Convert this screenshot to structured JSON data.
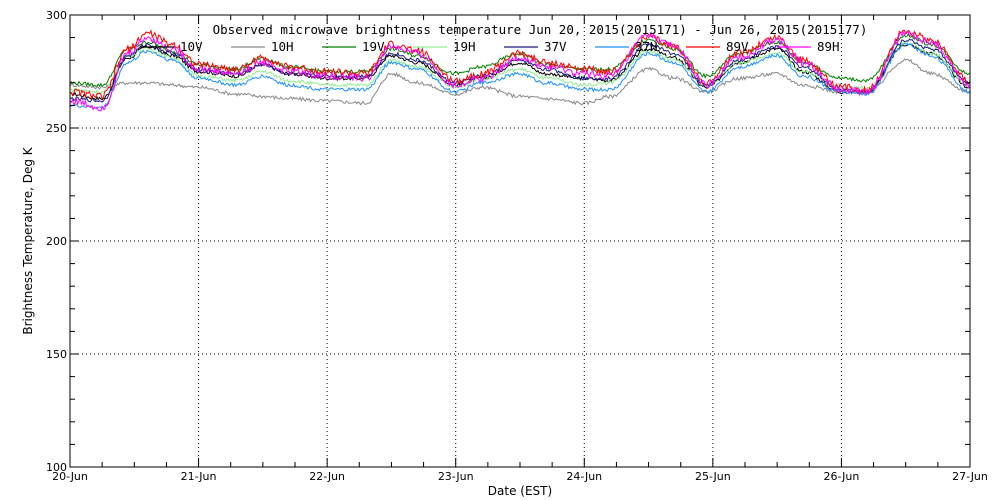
{
  "chart_data": {
    "type": "line",
    "title": "Observed microwave brightness temperature Jun 20, 2015(2015171) - Jun 26, 2015(2015177)",
    "xlabel": "Date (EST)",
    "ylabel": "Brightness Temperature, Deg K",
    "xlim": [
      0,
      7
    ],
    "ylim": [
      100,
      300
    ],
    "x_ticks": [
      0,
      1,
      2,
      3,
      4,
      5,
      6,
      7
    ],
    "x_tick_labels": [
      "20-Jun",
      "21-Jun",
      "22-Jun",
      "23-Jun",
      "24-Jun",
      "25-Jun",
      "26-Jun",
      "27-Jun"
    ],
    "y_ticks": [
      100,
      150,
      200,
      250,
      300
    ],
    "y_tick_labels": [
      "100",
      "150",
      "200",
      "250",
      "300"
    ],
    "grid": "dotted",
    "legend": "top",
    "series": [
      {
        "name": "10V",
        "color": "#000000",
        "x": [
          0,
          0.25,
          0.45,
          0.6,
          0.8,
          1.0,
          1.3,
          1.5,
          1.7,
          2.0,
          2.3,
          2.5,
          2.7,
          3.0,
          3.2,
          3.5,
          3.7,
          4.0,
          4.2,
          4.5,
          4.7,
          4.95,
          5.2,
          5.5,
          5.7,
          6.0,
          6.2,
          6.5,
          6.7,
          7.0
        ],
        "y": [
          265,
          263,
          281,
          286,
          282,
          275,
          273,
          278,
          274,
          272,
          272,
          282,
          279,
          269,
          272,
          279,
          274,
          272,
          271,
          285,
          281,
          268,
          279,
          285,
          275,
          266,
          266,
          287,
          283,
          268
        ]
      },
      {
        "name": "10H",
        "color": "#888888",
        "x": [
          0,
          0.25,
          0.45,
          0.6,
          0.8,
          1.0,
          1.3,
          1.5,
          1.7,
          2.0,
          2.3,
          2.5,
          2.7,
          3.0,
          3.2,
          3.5,
          3.7,
          4.0,
          4.2,
          4.5,
          4.7,
          4.95,
          5.2,
          5.5,
          5.7,
          6.0,
          6.2,
          6.5,
          6.7,
          7.0
        ],
        "y": [
          269,
          268,
          270,
          270,
          269,
          268,
          265,
          264,
          263,
          262,
          261,
          274,
          270,
          265,
          268,
          264,
          263,
          261,
          264,
          276,
          272,
          266,
          272,
          274,
          269,
          266,
          266,
          280,
          274,
          266
        ]
      },
      {
        "name": "19V",
        "color": "#008000",
        "x": [
          0,
          0.25,
          0.45,
          0.6,
          0.8,
          1.0,
          1.3,
          1.5,
          1.7,
          2.0,
          2.3,
          2.5,
          2.7,
          3.0,
          3.2,
          3.5,
          3.7,
          4.0,
          4.2,
          4.5,
          4.7,
          4.95,
          5.2,
          5.5,
          5.7,
          6.0,
          6.2,
          6.5,
          6.7,
          7.0
        ],
        "y": [
          270,
          269,
          285,
          288,
          284,
          278,
          276,
          281,
          277,
          275,
          275,
          285,
          282,
          274,
          277,
          283,
          278,
          276,
          276,
          289,
          285,
          273,
          283,
          288,
          279,
          272,
          271,
          291,
          287,
          274
        ]
      },
      {
        "name": "19H",
        "color": "#90ee90",
        "x": [
          0,
          0.25,
          0.45,
          0.6,
          0.8,
          1.0,
          1.3,
          1.5,
          1.7,
          2.0,
          2.3,
          2.5,
          2.7,
          3.0,
          3.2,
          3.5,
          3.7,
          4.0,
          4.2,
          4.5,
          4.7,
          4.95,
          5.2,
          5.5,
          5.7,
          6.0,
          6.2,
          6.5,
          6.7,
          7.0
        ],
        "y": [
          267,
          266,
          282,
          285,
          281,
          273,
          271,
          275,
          271,
          269,
          269,
          280,
          277,
          268,
          272,
          276,
          272,
          269,
          270,
          284,
          280,
          269,
          279,
          283,
          275,
          268,
          268,
          288,
          283,
          269
        ]
      },
      {
        "name": "37V",
        "color": "#1a1a80",
        "x": [
          0,
          0.25,
          0.45,
          0.6,
          0.8,
          1.0,
          1.3,
          1.5,
          1.7,
          2.0,
          2.3,
          2.5,
          2.7,
          3.0,
          3.2,
          3.5,
          3.7,
          4.0,
          4.2,
          4.5,
          4.7,
          4.95,
          5.2,
          5.5,
          5.7,
          6.0,
          6.2,
          6.5,
          6.7,
          7.0
        ],
        "y": [
          263,
          262,
          282,
          287,
          283,
          276,
          274,
          278,
          274,
          273,
          273,
          283,
          280,
          270,
          273,
          280,
          276,
          272,
          272,
          287,
          283,
          269,
          280,
          286,
          277,
          267,
          266,
          289,
          285,
          270
        ]
      },
      {
        "name": "37H",
        "color": "#1e90ff",
        "x": [
          0,
          0.25,
          0.45,
          0.6,
          0.8,
          1.0,
          1.3,
          1.5,
          1.7,
          2.0,
          2.3,
          2.5,
          2.7,
          3.0,
          3.2,
          3.5,
          3.7,
          4.0,
          4.2,
          4.5,
          4.7,
          4.95,
          5.2,
          5.5,
          5.7,
          6.0,
          6.2,
          6.5,
          6.7,
          7.0
        ],
        "y": [
          260,
          259,
          279,
          284,
          280,
          272,
          269,
          273,
          269,
          267,
          267,
          279,
          276,
          266,
          270,
          274,
          270,
          267,
          267,
          283,
          279,
          266,
          277,
          282,
          273,
          266,
          265,
          287,
          282,
          266
        ]
      },
      {
        "name": "89V",
        "color": "#ff0000",
        "x": [
          0,
          0.25,
          0.45,
          0.6,
          0.8,
          1.0,
          1.3,
          1.5,
          1.7,
          2.0,
          2.3,
          2.5,
          2.7,
          3.0,
          3.2,
          3.5,
          3.7,
          4.0,
          4.2,
          4.5,
          4.7,
          4.95,
          5.2,
          5.5,
          5.7,
          6.0,
          6.2,
          6.5,
          6.7,
          7.0
        ],
        "y": [
          266,
          264,
          285,
          292,
          287,
          278,
          276,
          281,
          277,
          275,
          274,
          287,
          284,
          271,
          274,
          283,
          279,
          276,
          275,
          290,
          286,
          270,
          283,
          290,
          280,
          268,
          267,
          293,
          289,
          271
        ]
      },
      {
        "name": "89H",
        "color": "#ff00ff",
        "x": [
          0,
          0.25,
          0.45,
          0.6,
          0.8,
          1.0,
          1.3,
          1.5,
          1.7,
          2.0,
          2.3,
          2.5,
          2.7,
          3.0,
          3.2,
          3.5,
          3.7,
          4.0,
          4.2,
          4.5,
          4.7,
          4.95,
          5.2,
          5.5,
          5.7,
          6.0,
          6.2,
          6.5,
          6.7,
          7.0
        ],
        "y": [
          262,
          259,
          283,
          290,
          285,
          276,
          274,
          279,
          275,
          273,
          272,
          286,
          283,
          269,
          272,
          281,
          277,
          274,
          273,
          291,
          286,
          269,
          281,
          289,
          279,
          267,
          266,
          292,
          288,
          269
        ]
      }
    ]
  }
}
